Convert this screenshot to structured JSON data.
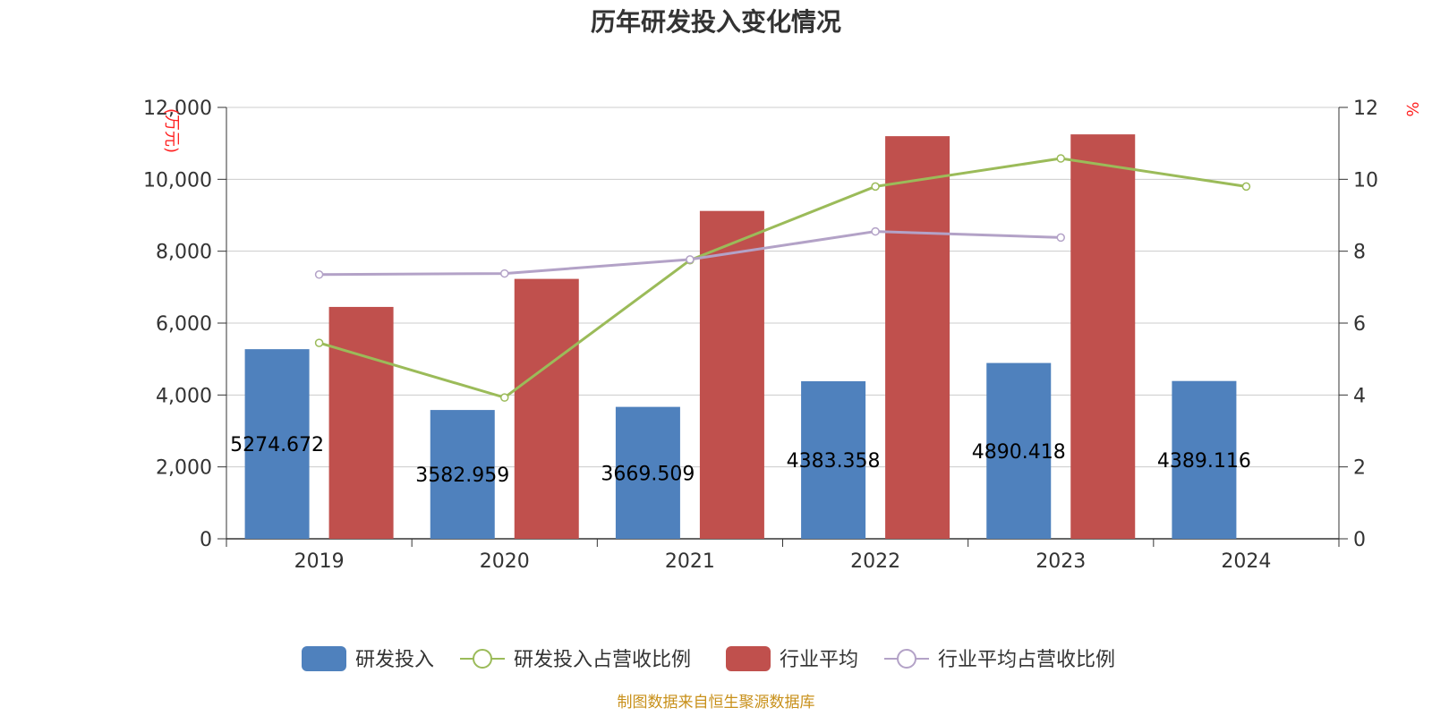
{
  "chart_data": {
    "type": "bar",
    "title": "历年研发投入变化情况",
    "categories": [
      "2019",
      "2020",
      "2021",
      "2022",
      "2023",
      "2024"
    ],
    "y_left": {
      "unit": "(万元)",
      "ylim": [
        0,
        12000
      ],
      "ticks": [
        0,
        2000,
        4000,
        6000,
        8000,
        10000,
        12000
      ],
      "tick_labels": [
        "0",
        "2,000",
        "4,000",
        "6,000",
        "8,000",
        "10,000",
        "12,000"
      ]
    },
    "y_right": {
      "unit": "%",
      "ylim": [
        0,
        12
      ],
      "ticks": [
        0,
        2,
        4,
        6,
        8,
        10,
        12
      ],
      "tick_labels": [
        "0",
        "2",
        "4",
        "6",
        "8",
        "10",
        "12"
      ]
    },
    "series": [
      {
        "name": "研发投入",
        "type": "bar",
        "axis": "left",
        "color": "#4f81bd",
        "values": [
          5274.672,
          3582.959,
          3669.509,
          4383.358,
          4890.418,
          4389.116
        ],
        "labels": [
          "5274.672",
          "3582.959",
          "3669.509",
          "4383.358",
          "4890.418",
          "4389.116"
        ]
      },
      {
        "name": "研发投入占营收比例",
        "type": "line",
        "axis": "right",
        "color": "#9bbb59",
        "values": [
          5.45,
          3.93,
          7.75,
          9.8,
          10.58,
          9.8
        ]
      },
      {
        "name": "行业平均",
        "type": "bar",
        "axis": "left",
        "color": "#c0504d",
        "values": [
          6450,
          7230,
          9120,
          11200,
          11250,
          null
        ]
      },
      {
        "name": "行业平均占营收比例",
        "type": "line",
        "axis": "right",
        "color": "#b3a2c7",
        "values": [
          7.35,
          7.38,
          7.77,
          8.55,
          8.38,
          null
        ]
      }
    ],
    "grid": true,
    "legend_position": "bottom"
  },
  "footer": "制图数据来自恒生聚源数据库"
}
